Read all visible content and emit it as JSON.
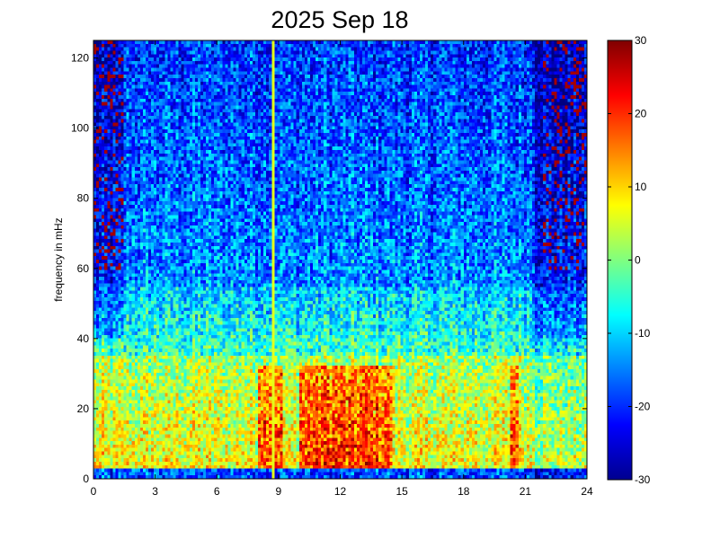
{
  "chart_data": {
    "type": "heatmap",
    "title": "2025 Sep 18",
    "xlabel": "",
    "ylabel": "frequency in mHz",
    "xlim": [
      0,
      24
    ],
    "ylim": [
      0,
      125
    ],
    "xticks": [
      0,
      3,
      6,
      9,
      12,
      15,
      18,
      21,
      24
    ],
    "yticks": [
      0,
      20,
      40,
      60,
      80,
      100,
      120
    ],
    "colorbar": {
      "colormap": "jet",
      "clim": [
        -30,
        30
      ],
      "ticks": [
        30,
        20,
        10,
        0,
        -10,
        -20,
        -30
      ]
    },
    "features": {
      "vertical_line_hour": 8.7,
      "strong_band_mHz": [
        0,
        35
      ],
      "hot_regions_hours": [
        [
          8,
          9.2
        ],
        [
          10,
          14.5
        ],
        [
          20.3,
          20.6
        ]
      ],
      "quiet_hours": [
        [
          21.5,
          24
        ],
        [
          0,
          1.5
        ]
      ]
    }
  }
}
